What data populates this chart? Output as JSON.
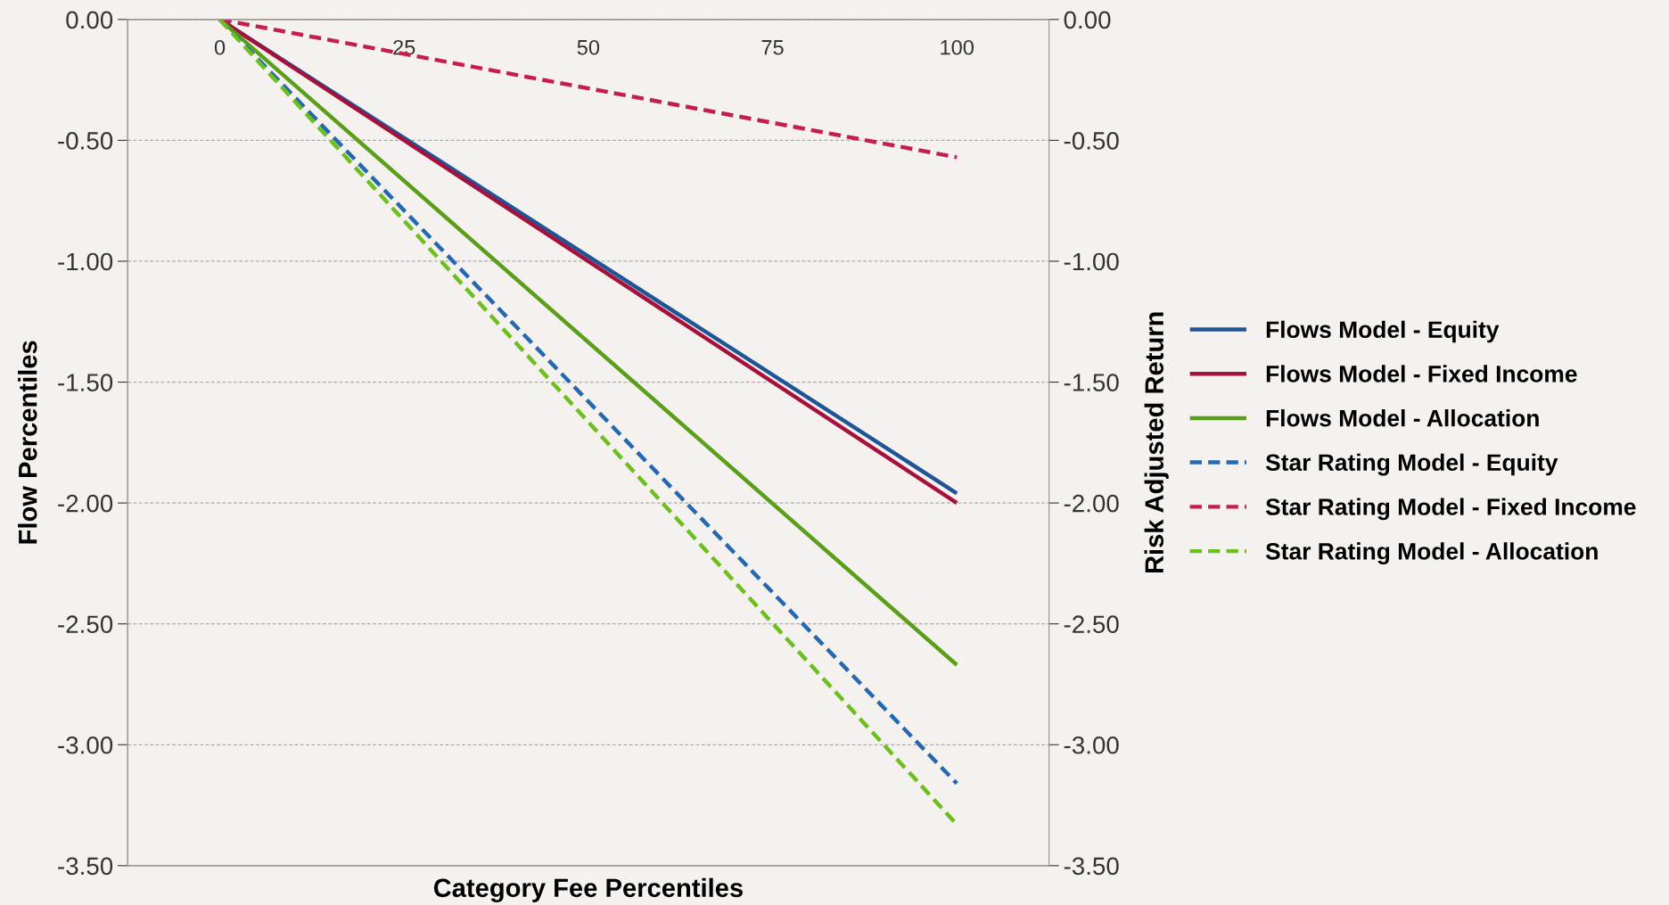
{
  "chart_data": {
    "type": "line",
    "xlabel": "Category Fee Percentiles",
    "ylabel": "Flow Percentiles",
    "y2label": "Risk Adjusted Return",
    "xlim": [
      -12.5,
      112.5
    ],
    "xticks": [
      0,
      25,
      50,
      75,
      100
    ],
    "ylim": [
      -3.5,
      0
    ],
    "yticks": [
      {
        "value": -3.5,
        "label": "-3.50"
      },
      {
        "value": -3.0,
        "label": "-3.00"
      },
      {
        "value": -2.5,
        "label": "-2.50"
      },
      {
        "value": -2.0,
        "label": "-2.00"
      },
      {
        "value": -1.5,
        "label": "-1.50"
      },
      {
        "value": -1.0,
        "label": "-1.00"
      },
      {
        "value": -0.5,
        "label": "-0.50"
      },
      {
        "value": 0,
        "label": "0.00"
      }
    ],
    "y2lim": [
      -3.5,
      0
    ],
    "y2ticks": [
      {
        "value": -3.5,
        "label": "-3.50"
      },
      {
        "value": -3.0,
        "label": "-3.00"
      },
      {
        "value": -2.5,
        "label": "-2.50"
      },
      {
        "value": -2.0,
        "label": "-2.00"
      },
      {
        "value": -1.5,
        "label": "-1.50"
      },
      {
        "value": -1.0,
        "label": "-1.00"
      },
      {
        "value": -0.5,
        "label": "-0.50"
      },
      {
        "value": 0,
        "label": "0.00"
      }
    ],
    "x": [
      0,
      100
    ],
    "grid": "y",
    "legend": "right",
    "marker": "none",
    "series": [
      {
        "name": "Flows Model - Equity",
        "color": "#1f5596",
        "line_style": "solid",
        "values": [
          0,
          -1.96
        ]
      },
      {
        "name": "Flows Model - Fixed Income",
        "color": "#a6103a",
        "line_style": "solid",
        "values": [
          0,
          -2.0
        ]
      },
      {
        "name": "Flows Model - Allocation",
        "color": "#5a9e1a",
        "line_style": "solid",
        "values": [
          0,
          -2.67
        ]
      },
      {
        "name": "Star Rating Model - Equity",
        "color": "#2468b0",
        "line_style": "dashed",
        "axis": "y2",
        "values": [
          0,
          -3.16
        ]
      },
      {
        "name": "Star Rating Model - Fixed Income",
        "color": "#c41e4e",
        "line_style": "dashed",
        "axis": "y2",
        "values": [
          0,
          -0.57
        ]
      },
      {
        "name": "Star Rating Model - Allocation",
        "color": "#6cbf1e",
        "line_style": "dashed",
        "axis": "y2",
        "values": [
          0,
          -3.33
        ]
      }
    ]
  }
}
